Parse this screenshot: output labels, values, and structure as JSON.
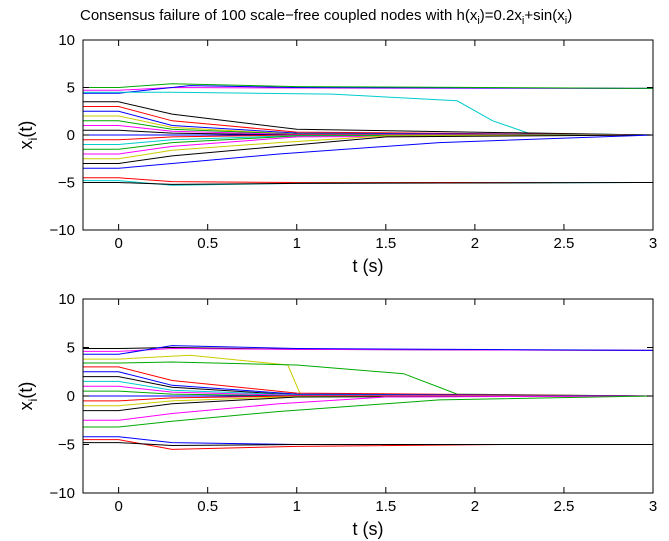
{
  "figure": {
    "title": "Consensus failure of 100 scale−free coupled nodes with h(x",
    "title_sub1": "i",
    "title_mid": ")=0.2x",
    "title_sub2": "i",
    "title_mid2": "+sin(x",
    "title_sub3": "i",
    "title_end": ")"
  },
  "chart_data": [
    {
      "type": "line",
      "xlabel": "t (s)",
      "ylabel_main": "x",
      "ylabel_sub": "i",
      "ylabel_end": "(t)",
      "xlim": [
        -0.2,
        3
      ],
      "ylim": [
        -10,
        10
      ],
      "xticks": [
        0,
        0.5,
        1,
        1.5,
        2,
        2.5,
        3
      ],
      "xtick_labels": [
        "0",
        "0.5",
        "1",
        "1.5",
        "2",
        "2.5",
        "3"
      ],
      "yticks": [
        10,
        5,
        0,
        -5,
        -10
      ],
      "ytick_labels": [
        "10",
        "5",
        "0",
        "−5",
        "−10"
      ],
      "grid": false,
      "series": [
        {
          "color": "#ff00ff",
          "x": [
            -0.2,
            0,
            0.3,
            1,
            3
          ],
          "y": [
            4.7,
            4.7,
            5.0,
            4.95,
            4.9
          ]
        },
        {
          "color": "#0000ff",
          "x": [
            -0.2,
            0,
            0.4,
            1,
            3
          ],
          "y": [
            4.4,
            4.4,
            5.2,
            5.0,
            4.9
          ]
        },
        {
          "color": "#00aa00",
          "x": [
            -0.2,
            0,
            0.3,
            1,
            3
          ],
          "y": [
            5.0,
            5.0,
            5.4,
            5.1,
            4.9
          ]
        },
        {
          "color": "#00cccc",
          "x": [
            -0.2,
            0,
            0.3,
            1.2,
            1.9,
            2.1,
            2.3,
            3
          ],
          "y": [
            4.5,
            4.5,
            4.5,
            4.3,
            3.6,
            1.5,
            0.2,
            0
          ]
        },
        {
          "color": "#000000",
          "x": [
            -0.2,
            0,
            0.3,
            1,
            3
          ],
          "y": [
            3.5,
            3.5,
            2.2,
            0.6,
            0
          ]
        },
        {
          "color": "#ff0000",
          "x": [
            -0.2,
            0,
            0.3,
            1,
            3
          ],
          "y": [
            3.0,
            3.0,
            1.5,
            0.3,
            0
          ]
        },
        {
          "color": "#0000ff",
          "x": [
            -0.2,
            0,
            0.3,
            1,
            3
          ],
          "y": [
            2.5,
            2.5,
            1.0,
            0.2,
            0
          ]
        },
        {
          "color": "#cccc00",
          "x": [
            -0.2,
            0,
            0.3,
            1,
            3
          ],
          "y": [
            2.0,
            2.0,
            0.8,
            0.1,
            0
          ]
        },
        {
          "color": "#00aa00",
          "x": [
            -0.2,
            0,
            0.3,
            1,
            3
          ],
          "y": [
            1.5,
            1.5,
            0.6,
            0.1,
            0
          ]
        },
        {
          "color": "#ff00ff",
          "x": [
            -0.2,
            0,
            0.3,
            1,
            3
          ],
          "y": [
            1.0,
            1.0,
            0.4,
            0.05,
            0
          ]
        },
        {
          "color": "#000000",
          "x": [
            -0.2,
            0,
            0.3,
            1,
            3
          ],
          "y": [
            0.5,
            0.5,
            0.2,
            0,
            0
          ]
        },
        {
          "color": "#0000ff",
          "x": [
            -0.2,
            3
          ],
          "y": [
            0,
            0
          ]
        },
        {
          "color": "#ff0000",
          "x": [
            -0.2,
            0,
            0.3,
            1,
            3
          ],
          "y": [
            -0.5,
            -0.5,
            -0.2,
            0,
            0
          ]
        },
        {
          "color": "#00cccc",
          "x": [
            -0.2,
            0,
            0.3,
            1,
            3
          ],
          "y": [
            -1.0,
            -1.0,
            -0.5,
            -0.05,
            0
          ]
        },
        {
          "color": "#00aa00",
          "x": [
            -0.2,
            0,
            0.3,
            1,
            3
          ],
          "y": [
            -1.5,
            -1.5,
            -0.8,
            -0.1,
            0
          ]
        },
        {
          "color": "#ff00ff",
          "x": [
            -0.2,
            0,
            0.3,
            1,
            3
          ],
          "y": [
            -2.0,
            -2.0,
            -1.2,
            -0.2,
            0
          ]
        },
        {
          "color": "#cccc00",
          "x": [
            -0.2,
            0,
            0.3,
            0.9,
            1.5,
            3
          ],
          "y": [
            -2.5,
            -2.5,
            -1.6,
            -0.8,
            -0.1,
            0
          ]
        },
        {
          "color": "#000000",
          "x": [
            -0.2,
            0,
            0.3,
            0.9,
            1.5,
            3
          ],
          "y": [
            -3.0,
            -3.0,
            -2.2,
            -1.2,
            -0.2,
            0
          ]
        },
        {
          "color": "#0000ff",
          "x": [
            -0.2,
            0,
            0.3,
            0.9,
            1.8,
            3
          ],
          "y": [
            -3.5,
            -3.5,
            -3.0,
            -2.0,
            -0.8,
            0
          ]
        },
        {
          "color": "#ff0000",
          "x": [
            -0.2,
            0,
            0.3,
            1,
            3
          ],
          "y": [
            -4.5,
            -4.5,
            -4.9,
            -5.0,
            -5.0
          ]
        },
        {
          "color": "#00cccc",
          "x": [
            -0.2,
            0,
            0.3,
            1,
            3
          ],
          "y": [
            -4.8,
            -4.8,
            -5.3,
            -5.1,
            -5.0
          ]
        },
        {
          "color": "#000000",
          "x": [
            -0.2,
            0,
            0.3,
            1,
            3
          ],
          "y": [
            -5.0,
            -5.0,
            -5.2,
            -5.1,
            -5.0
          ]
        }
      ]
    },
    {
      "type": "line",
      "xlabel": "t (s)",
      "ylabel_main": "x",
      "ylabel_sub": "i",
      "ylabel_end": "(t)",
      "xlim": [
        -0.2,
        3
      ],
      "ylim": [
        -10,
        10
      ],
      "xticks": [
        0,
        0.5,
        1,
        1.5,
        2,
        2.5,
        3
      ],
      "xtick_labels": [
        "0",
        "0.5",
        "1",
        "1.5",
        "2",
        "2.5",
        "3"
      ],
      "yticks": [
        10,
        5,
        0,
        -5,
        -10
      ],
      "ytick_labels": [
        "10",
        "5",
        "0",
        "−5",
        "−10"
      ],
      "grid": false,
      "series": [
        {
          "color": "#000000",
          "x": [
            -0.2,
            0,
            0.3,
            1,
            3
          ],
          "y": [
            4.9,
            4.9,
            5.0,
            4.8,
            4.7
          ]
        },
        {
          "color": "#ff00ff",
          "x": [
            -0.2,
            0,
            0.3,
            1,
            3
          ],
          "y": [
            4.6,
            4.6,
            4.9,
            4.8,
            4.7
          ]
        },
        {
          "color": "#0000ff",
          "x": [
            -0.2,
            0,
            0.3,
            1,
            3
          ],
          "y": [
            4.3,
            4.3,
            5.2,
            4.9,
            4.7
          ]
        },
        {
          "color": "#cccc00",
          "x": [
            -0.2,
            0,
            0.4,
            0.95,
            1.02
          ],
          "y": [
            3.8,
            3.8,
            4.2,
            3.2,
            0.2
          ]
        },
        {
          "color": "#00aa00",
          "x": [
            -0.2,
            0,
            0.3,
            1,
            1.6,
            1.9,
            3
          ],
          "y": [
            3.4,
            3.4,
            3.5,
            3.2,
            2.3,
            0.2,
            0
          ]
        },
        {
          "color": "#ff0000",
          "x": [
            -0.2,
            0,
            0.3,
            1,
            3
          ],
          "y": [
            3.0,
            3.0,
            1.6,
            0.3,
            0
          ]
        },
        {
          "color": "#0000ff",
          "x": [
            -0.2,
            0,
            0.3,
            1,
            3
          ],
          "y": [
            2.5,
            2.5,
            1.1,
            0.2,
            0
          ]
        },
        {
          "color": "#000000",
          "x": [
            -0.2,
            0,
            0.3,
            1,
            3
          ],
          "y": [
            2.0,
            2.0,
            0.9,
            0.1,
            0
          ]
        },
        {
          "color": "#00cccc",
          "x": [
            -0.2,
            0,
            0.3,
            1,
            3
          ],
          "y": [
            1.5,
            1.5,
            0.6,
            0.1,
            0
          ]
        },
        {
          "color": "#ff00ff",
          "x": [
            -0.2,
            0,
            0.3,
            1,
            3
          ],
          "y": [
            1.0,
            1.0,
            0.4,
            0.05,
            0
          ]
        },
        {
          "color": "#00aa00",
          "x": [
            -0.2,
            0,
            0.3,
            1,
            3
          ],
          "y": [
            0.5,
            0.5,
            0.2,
            0,
            0
          ]
        },
        {
          "color": "#0000ff",
          "x": [
            -0.2,
            3
          ],
          "y": [
            0,
            0
          ]
        },
        {
          "color": "#ff0000",
          "x": [
            -0.2,
            0,
            0.3,
            1,
            3
          ],
          "y": [
            -0.5,
            -0.5,
            -0.2,
            0,
            0
          ]
        },
        {
          "color": "#cccc00",
          "x": [
            -0.2,
            0,
            0.3,
            1,
            3
          ],
          "y": [
            -1.0,
            -1.0,
            -0.5,
            -0.05,
            0
          ]
        },
        {
          "color": "#000000",
          "x": [
            -0.2,
            0,
            0.3,
            1,
            3
          ],
          "y": [
            -1.5,
            -1.5,
            -0.8,
            -0.1,
            0
          ]
        },
        {
          "color": "#ff00ff",
          "x": [
            -0.2,
            0,
            0.3,
            0.9,
            1.5,
            3
          ],
          "y": [
            -2.5,
            -2.5,
            -1.8,
            -0.8,
            -0.1,
            0
          ]
        },
        {
          "color": "#00aa00",
          "x": [
            -0.2,
            0,
            0.3,
            0.9,
            1.8,
            3
          ],
          "y": [
            -3.2,
            -3.2,
            -2.6,
            -1.6,
            -0.4,
            0
          ]
        },
        {
          "color": "#0000ff",
          "x": [
            -0.2,
            0,
            0.3,
            1,
            2.15
          ],
          "y": [
            -4.2,
            -4.2,
            -4.8,
            -5.0,
            -5.0
          ]
        },
        {
          "color": "#ff0000",
          "x": [
            -0.2,
            0,
            0.3,
            1,
            2.15
          ],
          "y": [
            -4.5,
            -4.5,
            -5.5,
            -5.2,
            -5.0
          ]
        },
        {
          "color": "#000000",
          "x": [
            -0.2,
            0,
            0.3,
            1,
            3
          ],
          "y": [
            -4.8,
            -4.8,
            -5.1,
            -5.0,
            -5.0
          ]
        }
      ]
    }
  ]
}
